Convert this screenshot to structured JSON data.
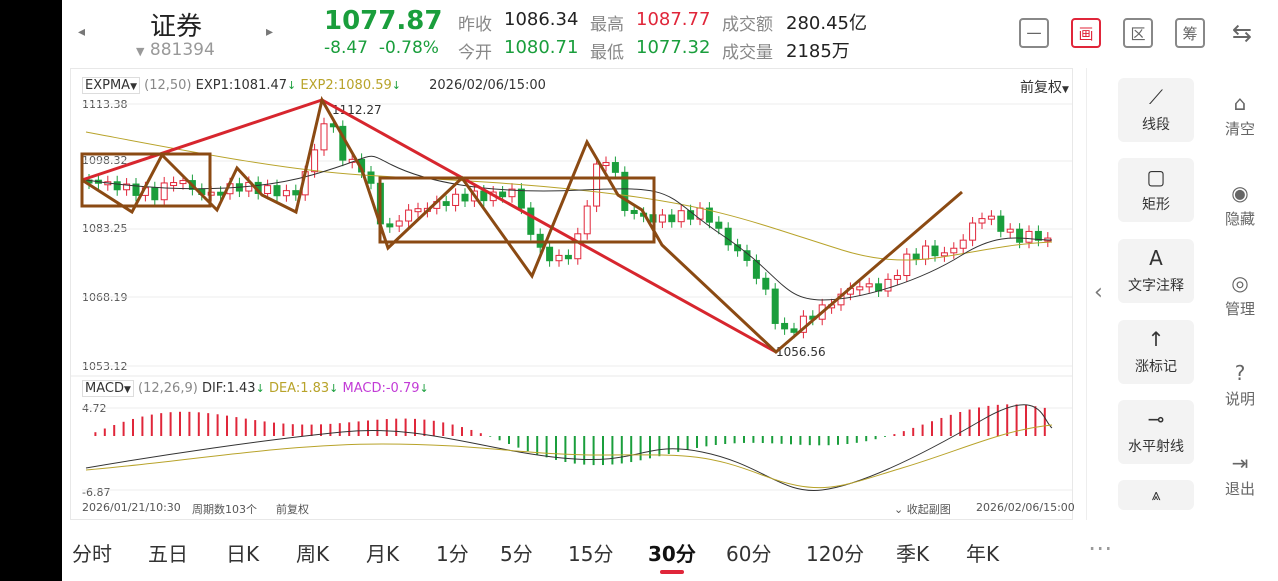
{
  "header": {
    "title": "证券",
    "code": "881394",
    "price": "1077.87",
    "change": "-8.47",
    "change_pct": "-0.78%",
    "prev_close_label": "昨收",
    "prev_close": "1086.34",
    "open_label": "今开",
    "open": "1080.71",
    "high_label": "最高",
    "high": "1087.77",
    "low_label": "最低",
    "low": "1077.32",
    "amount_label": "成交额",
    "amount": "280.45亿",
    "volume_label": "成交量",
    "volume": "2185万",
    "toolbar": [
      {
        "icon": "minus-icon",
        "glyph": "一"
      },
      {
        "icon": "draw-icon",
        "glyph": "画"
      },
      {
        "icon": "zone-icon",
        "glyph": "区"
      },
      {
        "icon": "chips-icon",
        "glyph": "筹"
      },
      {
        "icon": "phone-rotate-icon",
        "glyph": "⇆"
      }
    ]
  },
  "main_chart": {
    "indicator": "EXPMA",
    "params": "(12,50)",
    "exp1": "EXP1:1081.47",
    "exp2": "EXP2:1080.59",
    "datetime": "2026/02/06/15:00",
    "adjust": "前复权",
    "y_labels": [
      "1113.38",
      "1098.32",
      "1083.25",
      "1068.19",
      "1053.12"
    ],
    "high_marker": "1112.27",
    "low_marker": "1056.56"
  },
  "sub_chart": {
    "indicator": "MACD",
    "params": "(12,26,9)",
    "dif": "DIF:1.43",
    "dea": "DEA:1.83",
    "macd": "MACD:-0.79",
    "y_top": "4.72",
    "y_bottom": "-6.87"
  },
  "footer": {
    "start": "2026/01/21/10:30",
    "periods": "周期数103个",
    "adjust": "前复权",
    "collapse": "收起副图",
    "end": "2026/02/06/15:00"
  },
  "tools": [
    {
      "icon": "line-segment-icon",
      "glyph": "⟋",
      "label": "线段"
    },
    {
      "icon": "rectangle-icon",
      "glyph": "▢",
      "label": "矩形"
    },
    {
      "icon": "text-note-icon",
      "glyph": "A",
      "label": "文字注释"
    },
    {
      "icon": "rise-marker-icon",
      "glyph": "↑",
      "label": "涨标记"
    },
    {
      "icon": "horizontal-ray-icon",
      "glyph": "⊸",
      "label": "水平射线"
    }
  ],
  "side_actions": [
    {
      "icon": "clear-icon",
      "glyph": "⌂",
      "label": "清空"
    },
    {
      "icon": "eye-icon",
      "glyph": "◉",
      "label": "隐藏"
    },
    {
      "icon": "manage-icon",
      "glyph": "◎",
      "label": "管理"
    },
    {
      "icon": "help-icon",
      "glyph": "?",
      "label": "说明"
    },
    {
      "icon": "exit-icon",
      "glyph": "⇥",
      "label": "退出"
    }
  ],
  "tabs": [
    "分时",
    "五日",
    "日K",
    "周K",
    "月K",
    "1分",
    "5分",
    "15分",
    "30分",
    "60分",
    "120分",
    "季K",
    "年K"
  ],
  "active_tab": "30分",
  "colors": {
    "up": "#e0263a",
    "down": "#1a9e3c",
    "trend_red": "#d7262e",
    "pattern_brown": "#8b4a13",
    "exp1": "#333333",
    "exp2": "#b8a32a"
  }
}
